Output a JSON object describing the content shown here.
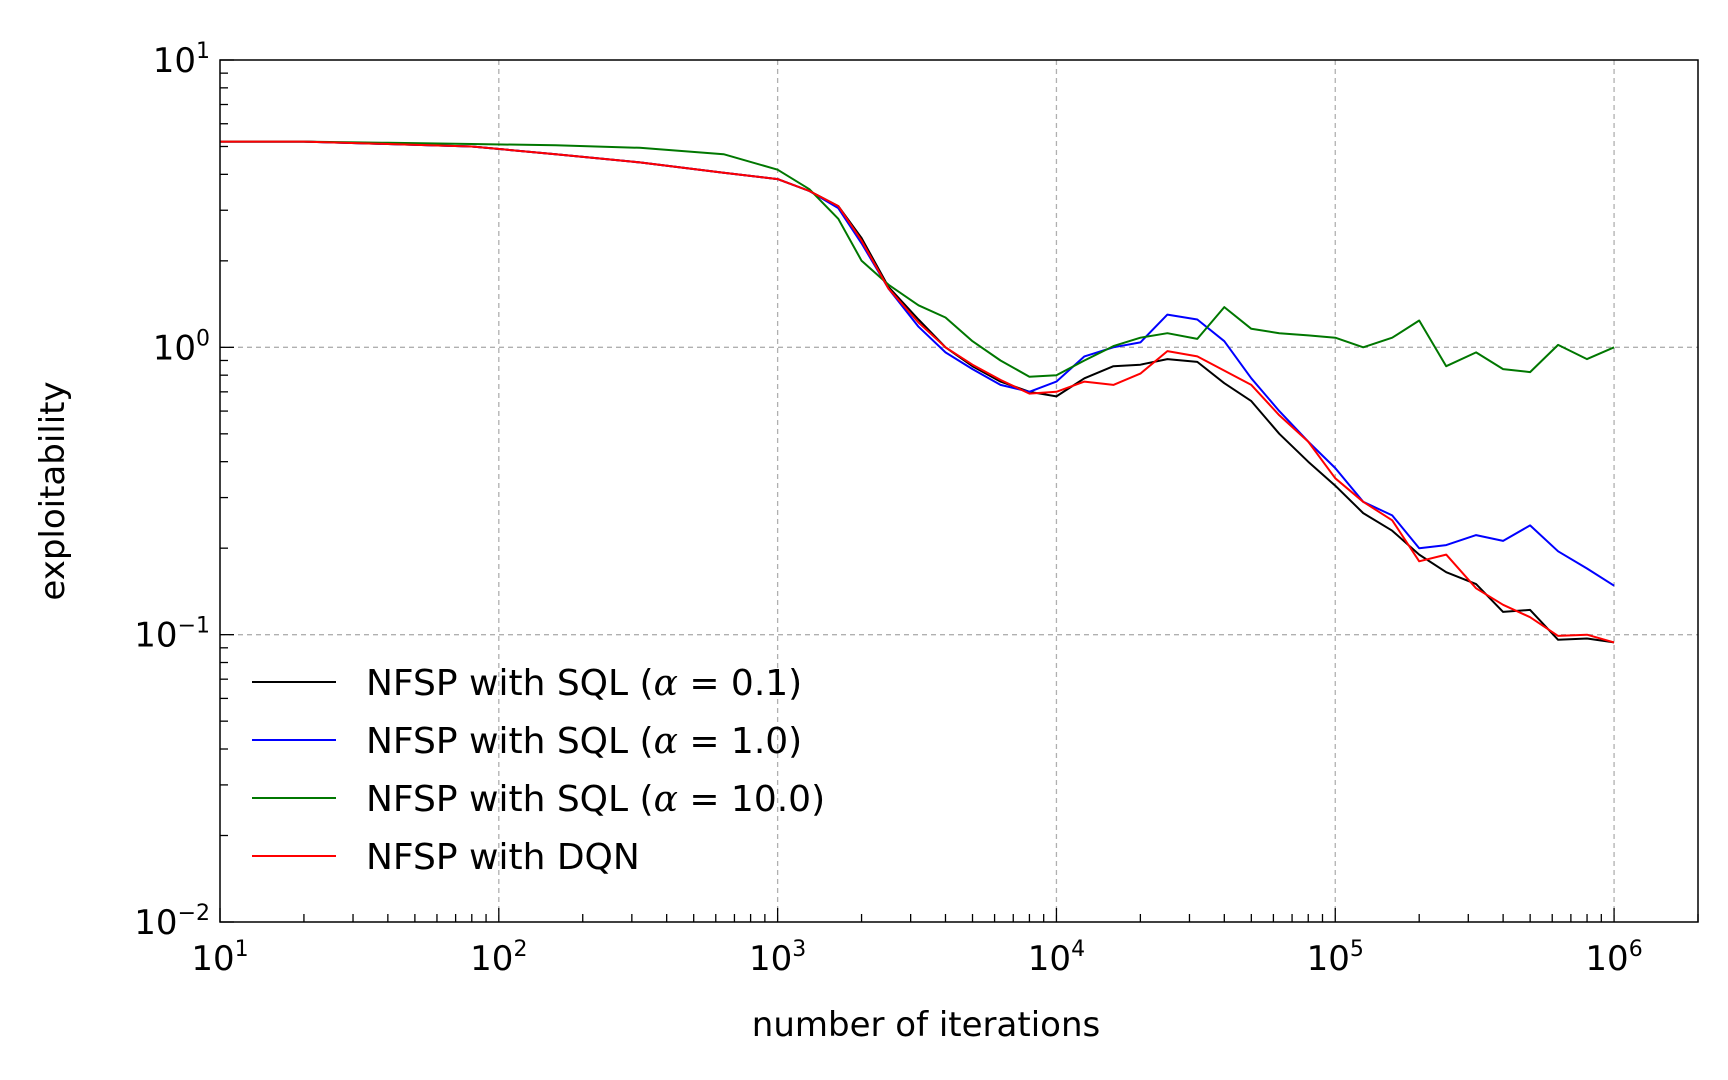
{
  "chart_data": {
    "type": "line",
    "title": "",
    "xlabel": "number of iterations",
    "ylabel": "exploitability",
    "x_scale": "log",
    "y_scale": "log",
    "xlim": [
      10,
      2000000
    ],
    "ylim": [
      0.01,
      10
    ],
    "grid": true,
    "legend_placement": "lower-left",
    "x_major_ticks": [
      {
        "value": 10,
        "base": "10",
        "exp": "1"
      },
      {
        "value": 100,
        "base": "10",
        "exp": "2"
      },
      {
        "value": 1000,
        "base": "10",
        "exp": "3"
      },
      {
        "value": 10000,
        "base": "10",
        "exp": "4"
      },
      {
        "value": 100000,
        "base": "10",
        "exp": "5"
      },
      {
        "value": 1000000,
        "base": "10",
        "exp": "6"
      }
    ],
    "y_major_ticks": [
      {
        "value": 0.01,
        "base": "10",
        "exp": "−2"
      },
      {
        "value": 0.1,
        "base": "10",
        "exp": "−1"
      },
      {
        "value": 1,
        "base": "10",
        "exp": "0"
      },
      {
        "value": 10,
        "base": "10",
        "exp": "1"
      }
    ],
    "series": [
      {
        "name": "NFSP with SQL (α = 0.1)",
        "legend_prefix": "NFSP with SQL (",
        "legend_alpha": "α",
        "legend_suffix": " = 0.1)",
        "color": "#000000",
        "x": [
          10,
          20,
          40,
          80,
          160,
          320,
          640,
          1000,
          1300,
          1650,
          2000,
          2500,
          3200,
          4000,
          5000,
          6300,
          8000,
          10000,
          12600,
          16000,
          20000,
          25000,
          32000,
          40000,
          50000,
          63000,
          80000,
          100000,
          126000,
          160000,
          200000,
          250000,
          320000,
          400000,
          500000,
          630000,
          800000,
          1000000
        ],
        "y": [
          5.2,
          5.2,
          5.1,
          5.0,
          4.7,
          4.4,
          4.05,
          3.85,
          3.5,
          3.1,
          2.4,
          1.62,
          1.25,
          1.0,
          0.86,
          0.76,
          0.7,
          0.675,
          0.78,
          0.86,
          0.87,
          0.91,
          0.89,
          0.75,
          0.65,
          0.5,
          0.4,
          0.33,
          0.265,
          0.23,
          0.19,
          0.165,
          0.15,
          0.12,
          0.122,
          0.096,
          0.097,
          0.094
        ]
      },
      {
        "name": "NFSP with SQL (α = 1.0)",
        "legend_prefix": "NFSP with SQL (",
        "legend_alpha": "α",
        "legend_suffix": " = 1.0)",
        "color": "#0000ff",
        "x": [
          10,
          20,
          40,
          80,
          160,
          320,
          640,
          1000,
          1300,
          1650,
          2000,
          2500,
          3200,
          4000,
          5000,
          6300,
          8000,
          10000,
          12600,
          16000,
          20000,
          25000,
          32000,
          40000,
          50000,
          63000,
          80000,
          100000,
          126000,
          160000,
          200000,
          250000,
          320000,
          400000,
          500000,
          630000,
          800000,
          1000000
        ],
        "y": [
          5.2,
          5.2,
          5.1,
          5.0,
          4.7,
          4.4,
          4.05,
          3.85,
          3.5,
          3.05,
          2.3,
          1.6,
          1.18,
          0.96,
          0.84,
          0.74,
          0.7,
          0.76,
          0.93,
          1.0,
          1.04,
          1.3,
          1.25,
          1.05,
          0.78,
          0.6,
          0.47,
          0.38,
          0.29,
          0.26,
          0.2,
          0.205,
          0.222,
          0.212,
          0.24,
          0.195,
          0.17,
          0.148
        ]
      },
      {
        "name": "NFSP with SQL (α = 10.0)",
        "legend_prefix": "NFSP with SQL (",
        "legend_alpha": "α",
        "legend_suffix": " = 10.0)",
        "color": "#007700",
        "x": [
          10,
          20,
          40,
          80,
          160,
          320,
          640,
          1000,
          1300,
          1650,
          2000,
          2500,
          3200,
          4000,
          5000,
          6300,
          8000,
          10000,
          12600,
          16000,
          20000,
          25000,
          32000,
          40000,
          50000,
          63000,
          80000,
          100000,
          126000,
          160000,
          200000,
          250000,
          320000,
          400000,
          500000,
          630000,
          800000,
          1000000
        ],
        "y": [
          5.2,
          5.2,
          5.15,
          5.1,
          5.05,
          4.95,
          4.7,
          4.15,
          3.55,
          2.8,
          2.0,
          1.65,
          1.4,
          1.27,
          1.05,
          0.9,
          0.79,
          0.8,
          0.9,
          1.01,
          1.08,
          1.12,
          1.07,
          1.38,
          1.16,
          1.12,
          1.1,
          1.08,
          1.0,
          1.08,
          1.24,
          0.86,
          0.96,
          0.84,
          0.82,
          1.02,
          0.91,
          1.0
        ]
      },
      {
        "name": "NFSP with DQN",
        "legend_prefix": "NFSP with DQN",
        "legend_alpha": "",
        "legend_suffix": "",
        "color": "#ff0000",
        "x": [
          10,
          20,
          40,
          80,
          160,
          320,
          640,
          1000,
          1300,
          1650,
          2000,
          2500,
          3200,
          4000,
          5000,
          6300,
          8000,
          10000,
          12600,
          16000,
          20000,
          25000,
          32000,
          40000,
          50000,
          63000,
          80000,
          100000,
          126000,
          160000,
          200000,
          250000,
          320000,
          400000,
          500000,
          630000,
          800000,
          1000000
        ],
        "y": [
          5.2,
          5.2,
          5.1,
          5.0,
          4.7,
          4.4,
          4.05,
          3.85,
          3.5,
          3.1,
          2.35,
          1.6,
          1.22,
          1.0,
          0.87,
          0.77,
          0.69,
          0.7,
          0.76,
          0.74,
          0.81,
          0.97,
          0.93,
          0.83,
          0.74,
          0.58,
          0.47,
          0.35,
          0.29,
          0.25,
          0.18,
          0.19,
          0.145,
          0.127,
          0.115,
          0.099,
          0.1,
          0.094
        ]
      }
    ]
  }
}
